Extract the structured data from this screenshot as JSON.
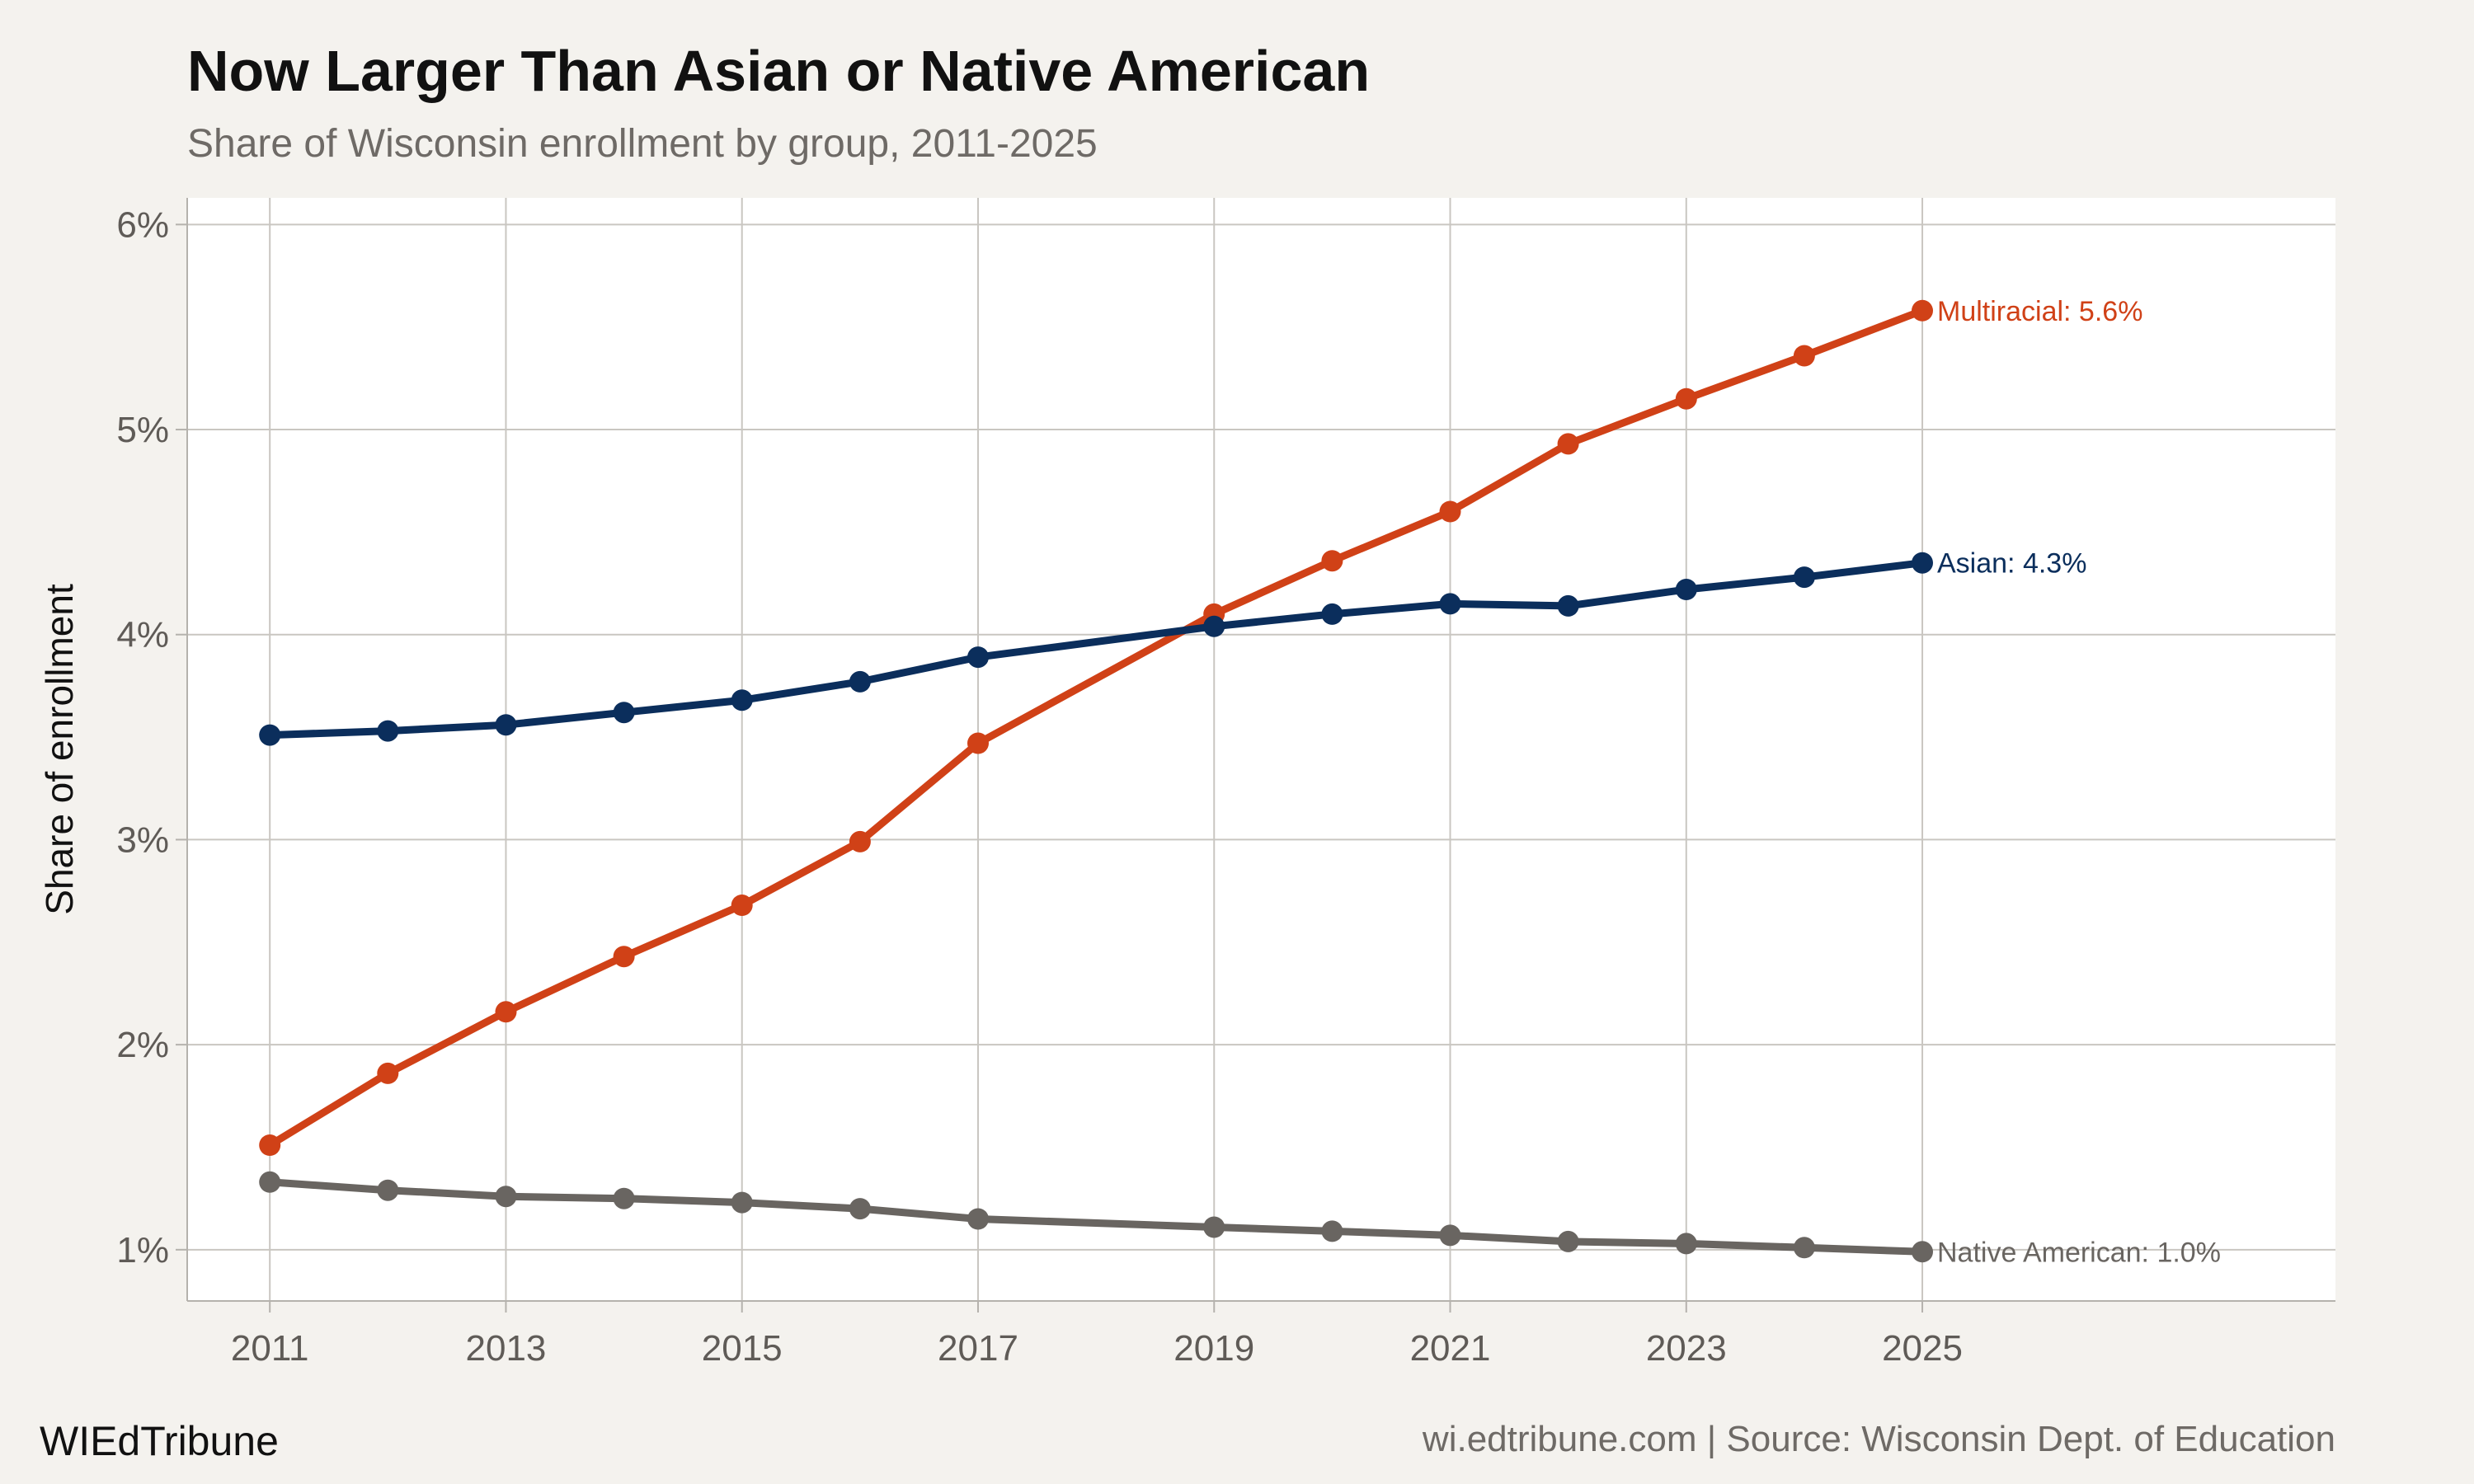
{
  "header": {
    "title": "Now Larger Than Asian or Native American",
    "subtitle": "Share of Wisconsin enrollment by group, 2011-2025"
  },
  "footer": {
    "brand": "WIEdTribune",
    "caption": "wi.edtribune.com | Source: Wisconsin Dept. of Education"
  },
  "chart_data": {
    "type": "line",
    "title": "Now Larger Than Asian or Native American",
    "subtitle": "Share of Wisconsin enrollment by group, 2011-2025",
    "xlabel": "",
    "ylabel": "Share of enrollment",
    "x": [
      2011,
      2012,
      2013,
      2014,
      2015,
      2016,
      2017,
      2019,
      2020,
      2021,
      2022,
      2023,
      2024,
      2025
    ],
    "xlim": [
      2010.3,
      2028.5
    ],
    "ylim": [
      0.75,
      6.13
    ],
    "x_ticks": [
      2011,
      2013,
      2015,
      2017,
      2019,
      2021,
      2023,
      2025
    ],
    "x_tick_labels": [
      "2011",
      "2013",
      "2015",
      "2017",
      "2019",
      "2021",
      "2023",
      "2025"
    ],
    "y_ticks": [
      1,
      2,
      3,
      4,
      5,
      6
    ],
    "y_tick_labels": [
      "1%",
      "2%",
      "3%",
      "4%",
      "5%",
      "6%"
    ],
    "grid": true,
    "legend": "none (direct end labels)",
    "series": [
      {
        "name": "Multiracial",
        "end_label": "Multiracial: 5.6%",
        "color": "#d04117",
        "values": [
          1.51,
          1.86,
          2.16,
          2.43,
          2.68,
          2.99,
          3.47,
          4.1,
          4.36,
          4.6,
          4.93,
          5.15,
          5.36,
          5.58
        ]
      },
      {
        "name": "Asian",
        "end_label": "Asian: 4.3%",
        "color": "#0b2e5c",
        "values": [
          3.51,
          3.53,
          3.56,
          3.62,
          3.68,
          3.77,
          3.89,
          4.04,
          4.1,
          4.15,
          4.14,
          4.22,
          4.28,
          4.35
        ]
      },
      {
        "name": "Native American",
        "end_label": "Native American: 1.0%",
        "color": "#696561",
        "values": [
          1.33,
          1.29,
          1.26,
          1.25,
          1.23,
          1.2,
          1.15,
          1.11,
          1.09,
          1.07,
          1.04,
          1.03,
          1.01,
          0.99
        ]
      }
    ]
  },
  "colors": {
    "background": "#f4f2ee",
    "panel": "#ffffff",
    "grid": "#c9c6c1",
    "axis": "#b5b2ad"
  }
}
